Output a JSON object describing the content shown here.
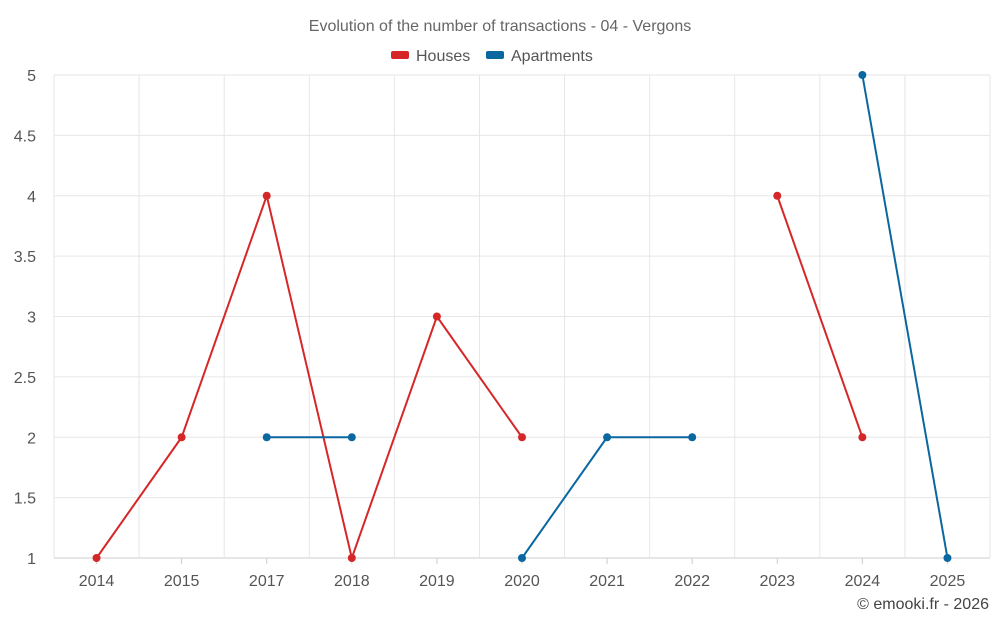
{
  "chart_data": {
    "type": "line",
    "title": "Evolution of the number of transactions - 04 - Vergons",
    "categories": [
      "2014",
      "2015",
      "2017",
      "2018",
      "2019",
      "2020",
      "2021",
      "2022",
      "2023",
      "2024",
      "2025"
    ],
    "series": [
      {
        "name": "Houses",
        "color": "#d62728",
        "values": [
          1,
          2,
          4,
          1,
          3,
          2,
          null,
          null,
          4,
          2,
          null
        ]
      },
      {
        "name": "Apartments",
        "color": "#0a67a0",
        "values": [
          null,
          null,
          2,
          2,
          null,
          1,
          2,
          2,
          null,
          5,
          1
        ]
      }
    ],
    "yticks": [
      "1",
      "1.5",
      "2",
      "2.5",
      "3",
      "3.5",
      "4",
      "4.5",
      "5"
    ],
    "ylim": [
      1,
      5
    ],
    "xlabel": "",
    "ylabel": "",
    "grid": true,
    "legend_position": "top-center",
    "credit": "© emooki.fr - 2026"
  }
}
